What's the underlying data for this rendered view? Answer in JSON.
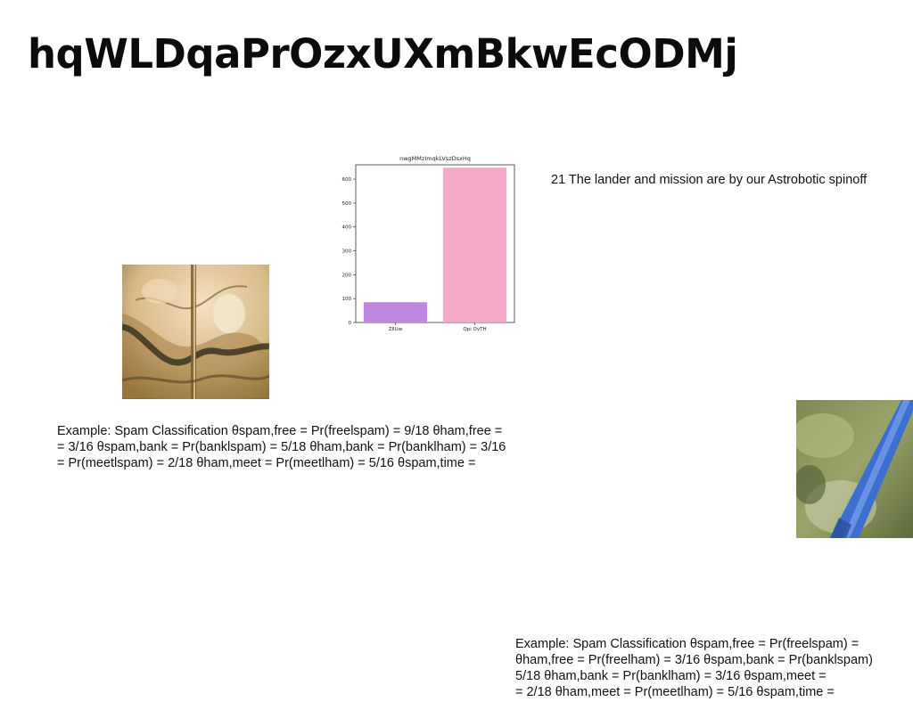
{
  "slide": {
    "title": "hqWLDqaPrOzxUXmBkwEcODMj",
    "caption": "21 The lander and mission are by our Astrobotic spinoff",
    "text_block_1": [
      "Example: Spam Classification θspam,free = Pr(freelspam) = 9/18 θham,free =",
      "= 3/16 θspam,bank = Pr(banklspam) = 5/18 θham,bank = Pr(banklham) = 3/16",
      "= Pr(meetlspam) = 2/18 θham,meet = Pr(meetlham) = 5/16 θspam,time ="
    ],
    "text_block_2": [
      "Example: Spam Classification θspam,free = Pr(freelspam) =",
      "θham,free = Pr(freelham) = 3/16 θspam,bank = Pr(banklspam)",
      "5/18 θham,bank = Pr(banklham) = 3/16 θspam,meet =",
      "= 2/18 θham,meet = Pr(meetlham) = 5/16 θspam,time ="
    ]
  },
  "chart_data": {
    "type": "bar",
    "title": "nwgMMzImqkLVszDsxHq",
    "categories": [
      "ZlIUw",
      "Qpi OvTH"
    ],
    "values": [
      85,
      648
    ],
    "colors": [
      "#bf87e0",
      "#f5a9c9"
    ],
    "ylim": [
      0,
      660
    ],
    "yticks": [
      0,
      100,
      200,
      300,
      400,
      500,
      600
    ],
    "xlabel": "",
    "ylabel": "",
    "grid": false
  },
  "images": [
    {
      "name": "microscope-photo",
      "icon": "microscope-sample-image"
    },
    {
      "name": "blue-tool-photo",
      "icon": "blue-instrument-image"
    }
  ]
}
